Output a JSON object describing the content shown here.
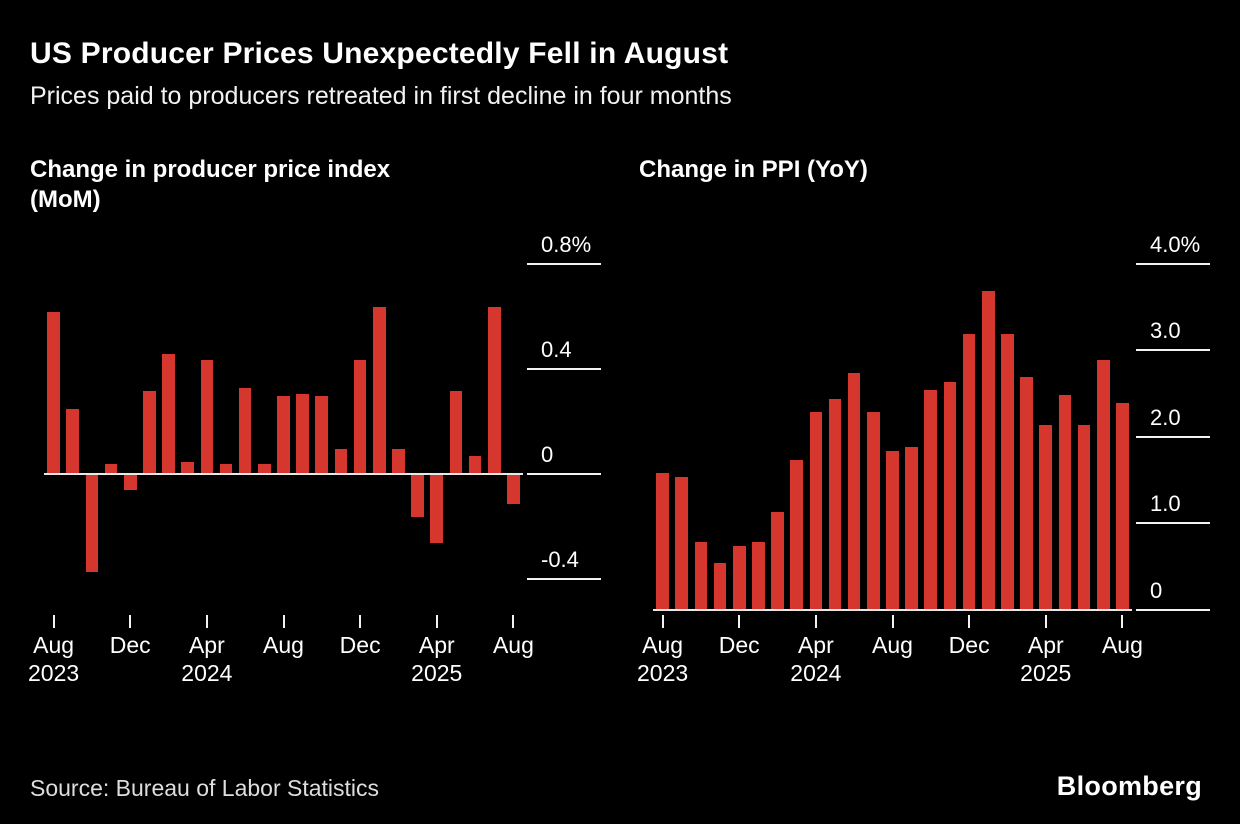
{
  "header": {
    "title": "US Producer Prices Unexpectedly Fell in August",
    "subtitle": "Prices paid to producers retreated in first decline in four months"
  },
  "footer": {
    "source": "Source: Bureau of Labor Statistics",
    "brand": "Bloomberg"
  },
  "colors": {
    "background": "#000000",
    "bar": "#d5362d",
    "axis_line": "#f2f2f2",
    "text": "#ffffff"
  },
  "chart_data": [
    {
      "type": "bar",
      "title": "Change in producer price index (MoM)",
      "title_lines": [
        "Change in producer price index",
        "(MoM)"
      ],
      "xlabel": "",
      "ylabel": "",
      "unit": "%",
      "grid": "off",
      "legend": "none",
      "ylim": [
        -0.52,
        0.9
      ],
      "categories": [
        "Aug 2023",
        "Sep 2023",
        "Oct 2023",
        "Nov 2023",
        "Dec 2023",
        "Jan 2024",
        "Feb 2024",
        "Mar 2024",
        "Apr 2024",
        "May 2024",
        "Jun 2024",
        "Jul 2024",
        "Aug 2024",
        "Sep 2024",
        "Oct 2024",
        "Nov 2024",
        "Dec 2024",
        "Jan 2025",
        "Feb 2025",
        "Mar 2025",
        "Apr 2025",
        "May 2025",
        "Jun 2025",
        "Jul 2025",
        "Aug 2025"
      ],
      "values": [
        0.62,
        0.25,
        -0.37,
        0.04,
        -0.06,
        0.32,
        0.46,
        0.05,
        0.44,
        0.04,
        0.33,
        0.04,
        0.3,
        0.31,
        0.3,
        0.1,
        0.44,
        0.64,
        0.1,
        -0.16,
        -0.26,
        0.32,
        0.07,
        0.64,
        -0.11
      ],
      "yticks": [
        {
          "value": 0.8,
          "label": "0.8%"
        },
        {
          "value": 0.4,
          "label": "0.4"
        },
        {
          "value": 0,
          "label": "0"
        },
        {
          "value": -0.4,
          "label": "-0.4"
        }
      ],
      "xticks": [
        {
          "index": 0,
          "label": "Aug",
          "year": "2023"
        },
        {
          "index": 4,
          "label": "Dec",
          "year": ""
        },
        {
          "index": 8,
          "label": "Apr",
          "year": "2024"
        },
        {
          "index": 12,
          "label": "Aug",
          "year": ""
        },
        {
          "index": 16,
          "label": "Dec",
          "year": ""
        },
        {
          "index": 20,
          "label": "Apr",
          "year": "2025"
        },
        {
          "index": 24,
          "label": "Aug",
          "year": ""
        }
      ]
    },
    {
      "type": "bar",
      "title": "Change in PPI (YoY)",
      "title_lines": [
        "Change in PPI (YoY)",
        ""
      ],
      "xlabel": "",
      "ylabel": "",
      "unit": "%",
      "grid": "off",
      "legend": "none",
      "ylim": [
        0,
        4.3
      ],
      "categories": [
        "Aug 2023",
        "Sep 2023",
        "Oct 2023",
        "Nov 2023",
        "Dec 2023",
        "Jan 2024",
        "Feb 2024",
        "Mar 2024",
        "Apr 2024",
        "May 2024",
        "Jun 2024",
        "Jul 2024",
        "Aug 2024",
        "Sep 2024",
        "Oct 2024",
        "Nov 2024",
        "Dec 2024",
        "Jan 2025",
        "Feb 2025",
        "Mar 2025",
        "Apr 2025",
        "May 2025",
        "Jun 2025",
        "Jul 2025",
        "Aug 2025"
      ],
      "values": [
        1.6,
        1.55,
        0.8,
        0.55,
        0.75,
        0.8,
        1.15,
        1.75,
        2.3,
        2.45,
        2.75,
        2.3,
        1.85,
        1.9,
        2.55,
        2.65,
        3.2,
        3.7,
        3.2,
        2.7,
        2.15,
        2.5,
        2.15,
        2.9,
        2.4
      ],
      "yticks": [
        {
          "value": 4.0,
          "label": "4.0%"
        },
        {
          "value": 3.0,
          "label": "3.0"
        },
        {
          "value": 2.0,
          "label": "2.0"
        },
        {
          "value": 1.0,
          "label": "1.0"
        },
        {
          "value": 0,
          "label": "0"
        }
      ],
      "xticks": [
        {
          "index": 0,
          "label": "Aug",
          "year": "2023"
        },
        {
          "index": 4,
          "label": "Dec",
          "year": ""
        },
        {
          "index": 8,
          "label": "Apr",
          "year": "2024"
        },
        {
          "index": 12,
          "label": "Aug",
          "year": ""
        },
        {
          "index": 16,
          "label": "Dec",
          "year": ""
        },
        {
          "index": 20,
          "label": "Apr",
          "year": "2025"
        },
        {
          "index": 24,
          "label": "Aug",
          "year": ""
        }
      ]
    }
  ]
}
